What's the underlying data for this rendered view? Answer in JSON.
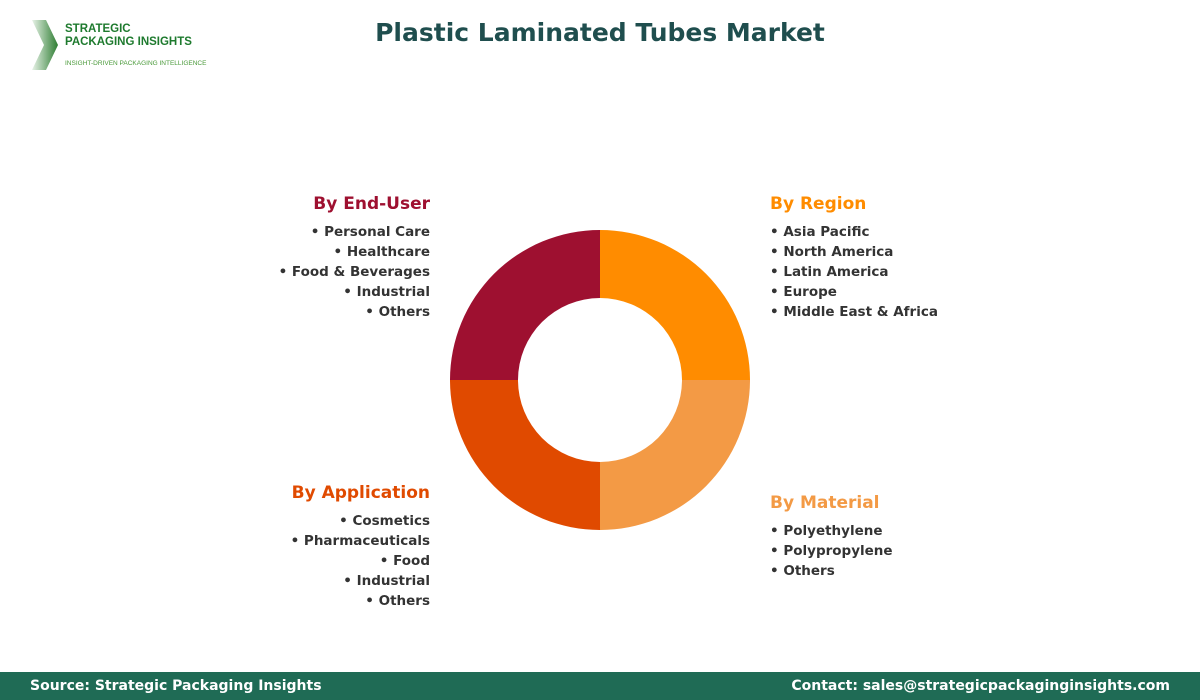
{
  "logo": {
    "name_line1": "STRATEGIC",
    "name_line2": "PACKAGING INSIGHTS",
    "tagline": "INSIGHT-DRIVEN PACKAGING INTELLIGENCE"
  },
  "title": "Plastic Laminated Tubes Market",
  "segments": [
    {
      "key": "end_user",
      "title": "By End-User",
      "color": "#9e1030",
      "items": [
        "Personal Care",
        "Healthcare",
        "Food & Beverages",
        "Industrial",
        "Others"
      ]
    },
    {
      "key": "region",
      "title": "By Region",
      "color": "#ff8c00",
      "items": [
        "Asia Pacific",
        "North America",
        "Latin America",
        "Europe",
        "Middle East & Africa"
      ]
    },
    {
      "key": "application",
      "title": "By Application",
      "color": "#e04a00",
      "items": [
        "Cosmetics",
        "Pharmaceuticals",
        "Food",
        "Industrial",
        "Others"
      ]
    },
    {
      "key": "material",
      "title": "By Material",
      "color": "#f39a45",
      "items": [
        "Polyethylene",
        "Polypropylene",
        "Others"
      ]
    }
  ],
  "footer": {
    "source": "Source: Strategic Packaging Insights",
    "contact": "Contact: sales@strategicpackaginginsights.com"
  }
}
